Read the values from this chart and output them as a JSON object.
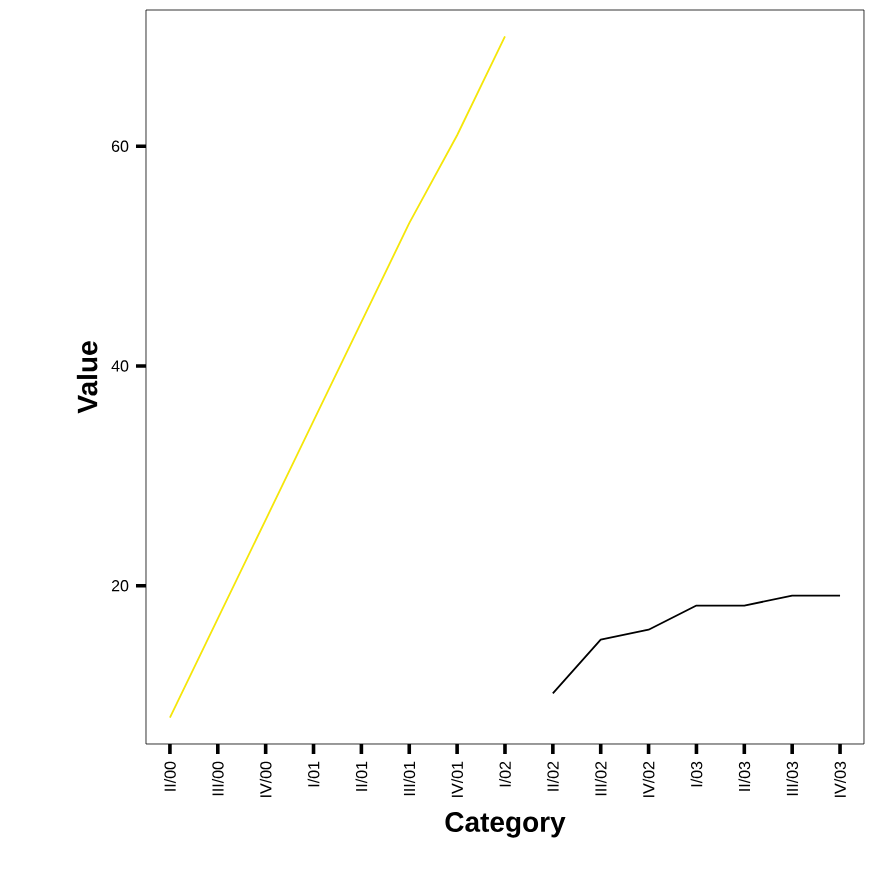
{
  "chart_data": {
    "type": "line",
    "xlabel": "Category",
    "ylabel": "Value",
    "categories": [
      "II/00",
      "III/00",
      "IV/00",
      "I/01",
      "II/01",
      "III/01",
      "IV/01",
      "I/02",
      "II/02",
      "III/02",
      "IV/02",
      "I/03",
      "II/03",
      "III/03",
      "IV/03"
    ],
    "series": [
      {
        "color": "#f5e60a",
        "values": [
          8,
          17,
          26,
          35,
          44,
          53,
          61,
          70,
          null,
          null,
          null,
          null,
          null,
          null,
          null
        ]
      },
      {
        "color": "#000000",
        "values": [
          null,
          null,
          null,
          null,
          null,
          null,
          null,
          null,
          10.2,
          15.1,
          16,
          18.2,
          18.2,
          19.1,
          19.1
        ]
      }
    ],
    "ylim": [
      5.6,
      72.4
    ],
    "yticks": [
      20,
      40,
      60
    ],
    "grid": false,
    "marker": "none",
    "line_style": "solid"
  }
}
